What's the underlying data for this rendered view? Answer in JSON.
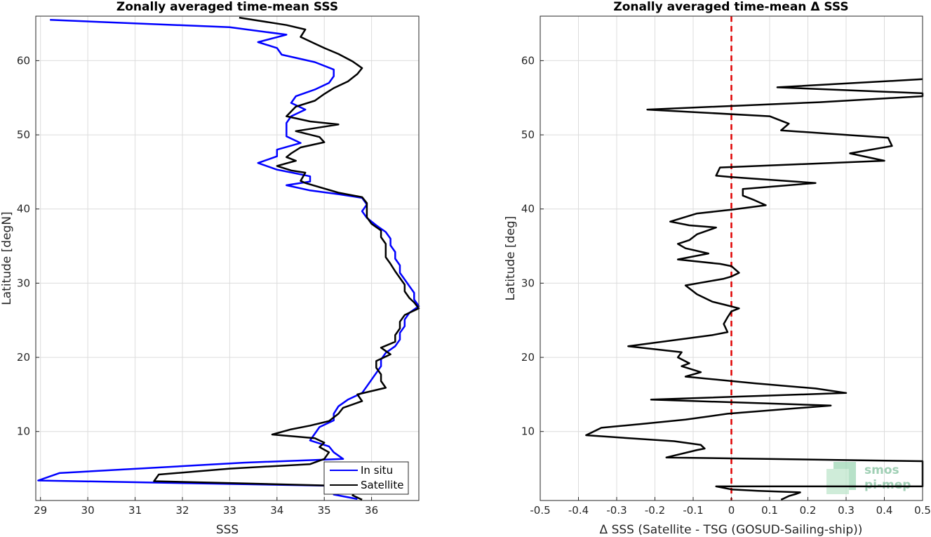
{
  "chart_data": [
    {
      "type": "line",
      "title": "Zonally averaged time-mean SSS",
      "xlabel": "SSS",
      "ylabel": "Latitude [degN]",
      "xlim": [
        28.9,
        37.0
      ],
      "ylim": [
        0.7,
        66.0
      ],
      "xticks": [
        29,
        30,
        31,
        32,
        33,
        34,
        35,
        36
      ],
      "yticks": [
        10,
        20,
        30,
        40,
        50,
        60
      ],
      "grid": true,
      "legend": "bottom-right",
      "series": [
        {
          "name": "In situ",
          "color": "#0000ff",
          "points": [
            [
              29.2,
              65.5
            ],
            [
              33.0,
              64.5
            ],
            [
              34.2,
              63.5
            ],
            [
              33.6,
              62.5
            ],
            [
              34.0,
              61.7
            ],
            [
              34.1,
              60.8
            ],
            [
              34.8,
              59.8
            ],
            [
              35.2,
              58.8
            ],
            [
              35.2,
              57.9
            ],
            [
              35.1,
              57.0
            ],
            [
              34.8,
              56.1
            ],
            [
              34.4,
              55.2
            ],
            [
              34.3,
              54.3
            ],
            [
              34.6,
              53.4
            ],
            [
              34.3,
              52.5
            ],
            [
              34.2,
              51.6
            ],
            [
              34.2,
              50.7
            ],
            [
              34.2,
              49.8
            ],
            [
              34.5,
              48.9
            ],
            [
              34.0,
              48.0
            ],
            [
              34.0,
              47.1
            ],
            [
              33.6,
              46.2
            ],
            [
              34.0,
              45.3
            ],
            [
              34.4,
              44.8
            ],
            [
              34.7,
              44.4
            ],
            [
              34.7,
              43.7
            ],
            [
              34.2,
              43.2
            ],
            [
              34.7,
              42.5
            ],
            [
              35.3,
              42.0
            ],
            [
              35.8,
              41.5
            ],
            [
              35.9,
              40.6
            ],
            [
              35.8,
              39.7
            ],
            [
              35.9,
              38.8
            ],
            [
              36.1,
              37.8
            ],
            [
              36.3,
              36.9
            ],
            [
              36.4,
              36.0
            ],
            [
              36.4,
              35.1
            ],
            [
              36.5,
              34.2
            ],
            [
              36.5,
              33.3
            ],
            [
              36.6,
              32.4
            ],
            [
              36.6,
              31.4
            ],
            [
              36.7,
              30.5
            ],
            [
              36.8,
              29.6
            ],
            [
              36.9,
              28.7
            ],
            [
              36.9,
              27.8
            ],
            [
              37.0,
              26.9
            ],
            [
              36.8,
              26.0
            ],
            [
              36.7,
              25.1
            ],
            [
              36.7,
              24.2
            ],
            [
              36.6,
              23.3
            ],
            [
              36.6,
              22.4
            ],
            [
              36.5,
              21.5
            ],
            [
              36.3,
              20.6
            ],
            [
              36.2,
              19.7
            ],
            [
              36.2,
              18.8
            ],
            [
              36.1,
              17.9
            ],
            [
              36.0,
              17.0
            ],
            [
              35.9,
              16.1
            ],
            [
              35.8,
              15.2
            ],
            [
              35.5,
              14.3
            ],
            [
              35.3,
              13.4
            ],
            [
              35.2,
              12.4
            ],
            [
              35.2,
              11.5
            ],
            [
              34.9,
              10.6
            ],
            [
              34.8,
              9.7
            ],
            [
              34.7,
              8.8
            ],
            [
              35.1,
              8.0
            ],
            [
              35.2,
              7.2
            ],
            [
              35.4,
              6.3
            ],
            [
              33.3,
              5.8
            ],
            [
              32.2,
              5.4
            ],
            [
              29.4,
              4.4
            ],
            [
              28.95,
              3.4
            ],
            [
              35.9,
              2.6
            ],
            [
              35.2,
              2.2
            ],
            [
              35.2,
              1.5
            ],
            [
              35.7,
              0.9
            ]
          ]
        },
        {
          "name": "Satellite",
          "color": "#000000",
          "points": [
            [
              33.2,
              65.8
            ],
            [
              34.2,
              64.8
            ],
            [
              34.6,
              64.2
            ],
            [
              34.5,
              63.2
            ],
            [
              34.8,
              62.3
            ],
            [
              35.0,
              61.7
            ],
            [
              35.3,
              60.9
            ],
            [
              35.6,
              59.9
            ],
            [
              35.8,
              59.0
            ],
            [
              35.7,
              58.2
            ],
            [
              35.5,
              57.2
            ],
            [
              35.2,
              56.3
            ],
            [
              35.0,
              55.5
            ],
            [
              34.8,
              54.6
            ],
            [
              34.4,
              53.8
            ],
            [
              34.2,
              52.5
            ],
            [
              34.7,
              51.8
            ],
            [
              35.3,
              51.4
            ],
            [
              34.4,
              50.5
            ],
            [
              34.9,
              49.7
            ],
            [
              35.0,
              49.0
            ],
            [
              34.5,
              48.3
            ],
            [
              34.3,
              47.5
            ],
            [
              34.2,
              47.0
            ],
            [
              34.4,
              46.5
            ],
            [
              34.0,
              45.8
            ],
            [
              34.3,
              45.2
            ],
            [
              34.6,
              44.9
            ],
            [
              34.5,
              43.8
            ],
            [
              34.6,
              43.5
            ],
            [
              35.3,
              42.2
            ],
            [
              35.8,
              41.6
            ],
            [
              35.9,
              40.8
            ],
            [
              35.9,
              39.9
            ],
            [
              35.9,
              38.9
            ],
            [
              36.0,
              38.0
            ],
            [
              36.2,
              37.1
            ],
            [
              36.2,
              36.2
            ],
            [
              36.3,
              35.3
            ],
            [
              36.3,
              34.4
            ],
            [
              36.3,
              33.5
            ],
            [
              36.4,
              32.6
            ],
            [
              36.5,
              31.6
            ],
            [
              36.6,
              30.7
            ],
            [
              36.7,
              29.8
            ],
            [
              36.7,
              28.9
            ],
            [
              36.8,
              28.0
            ],
            [
              36.9,
              27.4
            ],
            [
              37.0,
              26.6
            ],
            [
              36.7,
              25.7
            ],
            [
              36.6,
              24.8
            ],
            [
              36.6,
              23.9
            ],
            [
              36.5,
              23.0
            ],
            [
              36.5,
              22.1
            ],
            [
              36.2,
              21.3
            ],
            [
              36.4,
              20.4
            ],
            [
              36.1,
              19.5
            ],
            [
              36.1,
              18.6
            ],
            [
              36.2,
              17.7
            ],
            [
              36.2,
              16.8
            ],
            [
              36.3,
              15.9
            ],
            [
              35.7,
              15.0
            ],
            [
              35.8,
              14.1
            ],
            [
              35.4,
              13.2
            ],
            [
              35.3,
              12.4
            ],
            [
              35.1,
              11.4
            ],
            [
              34.7,
              10.8
            ],
            [
              34.3,
              10.3
            ],
            [
              33.9,
              9.6
            ],
            [
              34.8,
              9.1
            ],
            [
              35.0,
              8.5
            ],
            [
              34.9,
              7.9
            ],
            [
              35.1,
              7.2
            ],
            [
              35.0,
              6.3
            ],
            [
              34.7,
              5.6
            ],
            [
              33.0,
              5.0
            ],
            [
              31.5,
              4.2
            ],
            [
              31.4,
              3.3
            ],
            [
              35.8,
              2.6
            ],
            [
              35.7,
              2.2
            ],
            [
              35.6,
              1.4
            ],
            [
              35.8,
              0.8
            ]
          ]
        }
      ]
    },
    {
      "type": "line",
      "title": "Zonally averaged time-mean Δ SSS",
      "xlabel": "Δ SSS (Satellite - TSG (GOSUD-Sailing-ship))",
      "ylabel": "Latitude [deg]",
      "xlim": [
        -0.5,
        0.5
      ],
      "ylim": [
        0.7,
        66.0
      ],
      "xticks": [
        -0.5,
        -0.4,
        -0.3,
        -0.2,
        -0.1,
        0,
        0.1,
        0.2,
        0.3,
        0.4,
        0.5
      ],
      "xtick_labels": [
        "-0.5",
        "-0.4",
        "-0.3",
        "-0.2",
        "-0.1",
        "0",
        "0.1",
        "0.2",
        "0.3",
        "0.4",
        "0.5"
      ],
      "yticks": [
        10,
        20,
        30,
        40,
        50,
        60
      ],
      "grid": true,
      "reference_line": {
        "x": 0,
        "color": "#e00000",
        "style": "dashed"
      },
      "series": [
        {
          "color": "#000000",
          "points": [
            [
              0.5,
              57.5
            ],
            [
              0.12,
              56.4
            ],
            [
              0.5,
              55.6
            ],
            [
              0.5,
              55.2
            ],
            [
              0.23,
              54.4
            ],
            [
              -0.22,
              53.4
            ],
            [
              0.1,
              52.5
            ],
            [
              0.15,
              51.5
            ],
            [
              0.13,
              50.6
            ],
            [
              0.27,
              50.1
            ],
            [
              0.41,
              49.6
            ],
            [
              0.42,
              48.5
            ],
            [
              0.31,
              47.5
            ],
            [
              0.4,
              46.5
            ],
            [
              -0.03,
              45.6
            ],
            [
              -0.04,
              44.5
            ],
            [
              0.0,
              44.3
            ],
            [
              0.22,
              43.5
            ],
            [
              0.03,
              42.7
            ],
            [
              0.03,
              41.8
            ],
            [
              0.06,
              41.2
            ],
            [
              0.09,
              40.5
            ],
            [
              0.0,
              39.9
            ],
            [
              -0.09,
              39.4
            ],
            [
              -0.16,
              38.3
            ],
            [
              -0.11,
              37.8
            ],
            [
              -0.04,
              37.5
            ],
            [
              -0.09,
              36.6
            ],
            [
              -0.11,
              35.8
            ],
            [
              -0.14,
              35.3
            ],
            [
              -0.12,
              34.7
            ],
            [
              -0.06,
              34.0
            ],
            [
              -0.1,
              33.6
            ],
            [
              -0.14,
              33.2
            ],
            [
              -0.03,
              32.6
            ],
            [
              0.0,
              32.3
            ],
            [
              0.02,
              31.4
            ],
            [
              0.0,
              30.9
            ],
            [
              -0.02,
              30.6
            ],
            [
              -0.12,
              29.7
            ],
            [
              -0.09,
              28.5
            ],
            [
              -0.05,
              27.5
            ],
            [
              -0.01,
              27.0
            ],
            [
              0.02,
              26.6
            ],
            [
              0.0,
              26.2
            ],
            [
              -0.01,
              25.4
            ],
            [
              -0.02,
              24.5
            ],
            [
              -0.01,
              23.4
            ],
            [
              -0.05,
              23.0
            ],
            [
              -0.27,
              21.5
            ],
            [
              -0.13,
              20.7
            ],
            [
              -0.14,
              20.0
            ],
            [
              -0.11,
              19.2
            ],
            [
              -0.13,
              18.8
            ],
            [
              -0.08,
              18.0
            ],
            [
              -0.12,
              17.4
            ],
            [
              0.06,
              16.5
            ],
            [
              0.22,
              15.8
            ],
            [
              0.3,
              15.2
            ],
            [
              -0.21,
              14.3
            ],
            [
              0.26,
              13.5
            ],
            [
              -0.01,
              12.4
            ],
            [
              -0.12,
              11.6
            ],
            [
              -0.24,
              11.0
            ],
            [
              -0.34,
              10.5
            ],
            [
              -0.38,
              9.5
            ],
            [
              -0.24,
              9.0
            ],
            [
              -0.15,
              8.7
            ],
            [
              -0.08,
              8.2
            ],
            [
              -0.07,
              7.7
            ],
            [
              -0.09,
              7.5
            ],
            [
              -0.17,
              6.5
            ],
            [
              0.5,
              6.0
            ],
            [
              0.5,
              2.6
            ],
            [
              -0.04,
              2.6
            ],
            [
              0.0,
              2.2
            ],
            [
              0.07,
              2.0
            ],
            [
              0.18,
              1.8
            ],
            [
              0.17,
              1.6
            ],
            [
              0.15,
              1.3
            ],
            [
              0.13,
              0.8
            ]
          ]
        }
      ]
    }
  ],
  "legend": {
    "items": [
      {
        "label": "In situ",
        "color": "#0000ff"
      },
      {
        "label": "Satellite",
        "color": "#000000"
      }
    ]
  },
  "logo": {
    "line1": "smos",
    "line2": "pi-mep",
    "color": "#7fbf9c"
  }
}
